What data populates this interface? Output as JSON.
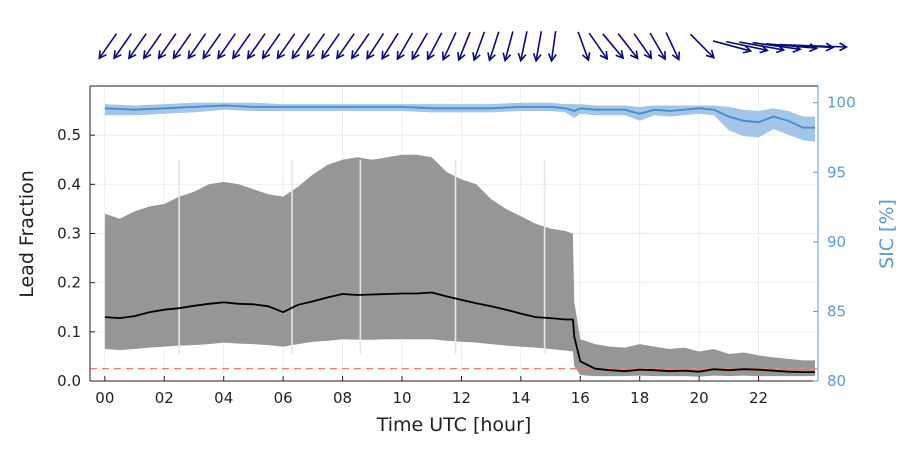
{
  "chart_data": {
    "type": "area",
    "title": "",
    "xlabel": "Time UTC [hour]",
    "ylabel": "Lead Fraction",
    "y2label": "SIC [%]",
    "xlim": [
      -0.5,
      24.0
    ],
    "ylim": [
      0,
      0.6
    ],
    "y2lim": [
      80,
      101.2
    ],
    "grid": true,
    "x_ticks": [
      0,
      2,
      4,
      6,
      8,
      10,
      12,
      14,
      16,
      18,
      20,
      22
    ],
    "x_tick_labels": [
      "00",
      "02",
      "04",
      "06",
      "08",
      "10",
      "12",
      "14",
      "16",
      "18",
      "20",
      "22"
    ],
    "y_ticks": [
      0.0,
      0.1,
      0.2,
      0.3,
      0.4,
      0.5
    ],
    "y_tick_labels": [
      "0.0",
      "0.1",
      "0.2",
      "0.3",
      "0.4",
      "0.5"
    ],
    "y2_ticks": [
      80,
      85,
      90,
      95,
      100
    ],
    "y2_tick_labels": [
      "80",
      "85",
      "90",
      "95",
      "100"
    ],
    "colors": {
      "lead_band": "#969696",
      "lead_mean": "#000000",
      "threshold": "#e8867a",
      "sic_band": "#a3c6e8",
      "sic_line": "#4a8bc7",
      "sic_axis": "#5b9bd5",
      "wind_arrows": "#0a0a80",
      "gaps": "#e6e6e6"
    },
    "threshold_y": 0.025,
    "data_gaps_hours": [
      2.5,
      6.3,
      8.6,
      11.8,
      14.8
    ],
    "lead_fraction": {
      "x": [
        0.0,
        0.5,
        1.0,
        1.5,
        2.0,
        2.5,
        3.0,
        3.5,
        4.0,
        4.5,
        5.0,
        5.5,
        6.0,
        6.5,
        7.0,
        7.5,
        8.0,
        8.5,
        9.0,
        9.5,
        10.0,
        10.5,
        11.0,
        11.5,
        12.0,
        12.5,
        13.0,
        13.5,
        14.0,
        14.5,
        15.0,
        15.5,
        15.75,
        15.8,
        16.0,
        16.5,
        17.0,
        17.5,
        18.0,
        18.5,
        19.0,
        19.5,
        20.0,
        20.5,
        21.0,
        21.5,
        22.0,
        22.5,
        23.0,
        23.5,
        23.9
      ],
      "mean": [
        0.13,
        0.128,
        0.132,
        0.14,
        0.145,
        0.148,
        0.153,
        0.157,
        0.16,
        0.157,
        0.156,
        0.152,
        0.14,
        0.155,
        0.162,
        0.17,
        0.177,
        0.175,
        0.176,
        0.177,
        0.178,
        0.178,
        0.18,
        0.172,
        0.165,
        0.158,
        0.152,
        0.145,
        0.137,
        0.13,
        0.128,
        0.125,
        0.125,
        0.09,
        0.04,
        0.025,
        0.022,
        0.02,
        0.023,
        0.022,
        0.02,
        0.021,
        0.019,
        0.024,
        0.022,
        0.024,
        0.023,
        0.021,
        0.019,
        0.018,
        0.018
      ],
      "upper": [
        0.34,
        0.33,
        0.345,
        0.355,
        0.36,
        0.375,
        0.385,
        0.4,
        0.405,
        0.4,
        0.39,
        0.38,
        0.375,
        0.395,
        0.42,
        0.44,
        0.45,
        0.455,
        0.45,
        0.455,
        0.46,
        0.46,
        0.455,
        0.425,
        0.41,
        0.4,
        0.37,
        0.35,
        0.335,
        0.32,
        0.31,
        0.305,
        0.3,
        0.16,
        0.085,
        0.075,
        0.07,
        0.068,
        0.075,
        0.07,
        0.065,
        0.068,
        0.06,
        0.065,
        0.055,
        0.058,
        0.052,
        0.048,
        0.045,
        0.042,
        0.042
      ],
      "lower": [
        0.065,
        0.063,
        0.065,
        0.068,
        0.07,
        0.072,
        0.073,
        0.075,
        0.078,
        0.076,
        0.075,
        0.073,
        0.07,
        0.075,
        0.08,
        0.082,
        0.085,
        0.084,
        0.084,
        0.085,
        0.085,
        0.085,
        0.085,
        0.082,
        0.08,
        0.078,
        0.075,
        0.072,
        0.07,
        0.068,
        0.065,
        0.062,
        0.06,
        0.03,
        0.012,
        0.01,
        0.01,
        0.01,
        0.011,
        0.01,
        0.01,
        0.01,
        0.009,
        0.011,
        0.01,
        0.011,
        0.01,
        0.01,
        0.01,
        0.01,
        0.01
      ]
    },
    "sic": {
      "x": [
        0.0,
        1.0,
        2.0,
        3.0,
        4.0,
        5.0,
        6.0,
        7.0,
        8.0,
        9.0,
        10.0,
        11.0,
        12.0,
        13.0,
        14.0,
        15.0,
        15.5,
        15.8,
        16.0,
        16.5,
        17.0,
        17.5,
        18.0,
        18.5,
        19.0,
        19.5,
        20.0,
        20.5,
        21.0,
        21.5,
        22.0,
        22.5,
        23.0,
        23.5,
        23.9
      ],
      "mean": [
        99.6,
        99.5,
        99.6,
        99.7,
        99.8,
        99.7,
        99.7,
        99.7,
        99.7,
        99.7,
        99.7,
        99.6,
        99.6,
        99.6,
        99.7,
        99.7,
        99.6,
        99.4,
        99.6,
        99.5,
        99.5,
        99.5,
        99.2,
        99.5,
        99.4,
        99.5,
        99.6,
        99.5,
        99.0,
        98.7,
        98.6,
        99.0,
        98.7,
        98.2,
        98.2
      ],
      "upper": [
        99.9,
        99.8,
        99.9,
        100.0,
        100.0,
        100.0,
        99.9,
        99.9,
        99.9,
        99.9,
        99.9,
        99.9,
        99.9,
        99.9,
        100.0,
        100.0,
        99.9,
        99.9,
        99.9,
        99.8,
        99.8,
        99.8,
        99.7,
        99.8,
        99.8,
        99.8,
        99.8,
        99.8,
        99.7,
        99.5,
        99.4,
        99.6,
        99.4,
        99.0,
        99.0
      ],
      "lower": [
        99.1,
        99.1,
        99.2,
        99.3,
        99.5,
        99.4,
        99.4,
        99.4,
        99.4,
        99.4,
        99.4,
        99.3,
        99.3,
        99.3,
        99.4,
        99.4,
        99.3,
        98.9,
        99.2,
        99.1,
        99.1,
        99.1,
        98.7,
        99.1,
        99.0,
        99.1,
        99.2,
        99.1,
        98.0,
        97.6,
        97.5,
        98.1,
        97.7,
        97.3,
        97.2
      ]
    },
    "wind_arrows": {
      "x": [
        0.0,
        0.5,
        1.0,
        1.5,
        2.0,
        2.5,
        3.0,
        3.5,
        4.0,
        4.5,
        5.0,
        5.5,
        6.0,
        6.5,
        7.0,
        7.5,
        8.0,
        8.5,
        9.0,
        9.5,
        10.0,
        10.5,
        11.0,
        11.5,
        12.0,
        12.5,
        13.0,
        13.5,
        14.0,
        14.5,
        15.0,
        16.0,
        16.5,
        17.0,
        17.5,
        18.0,
        18.5,
        19.0,
        20.0,
        21.0,
        21.5,
        22.0,
        22.5,
        23.0,
        23.5,
        23.9
      ],
      "direction": [
        35,
        35,
        35,
        35,
        35,
        35,
        35,
        35,
        35,
        35,
        35,
        35,
        35,
        35,
        35,
        35,
        35,
        35,
        33,
        32,
        30,
        30,
        28,
        25,
        22,
        20,
        18,
        15,
        12,
        10,
        8,
        -20,
        -35,
        -40,
        -38,
        -35,
        -30,
        -25,
        -45,
        -75,
        -78,
        -80,
        -82,
        -85,
        -87,
        -88
      ],
      "speed": [
        1.0,
        1.0,
        1.0,
        1.0,
        1.0,
        1.0,
        1.0,
        1.0,
        1.0,
        1.0,
        1.0,
        1.0,
        1.0,
        1.0,
        1.0,
        1.0,
        1.0,
        1.0,
        1.0,
        1.0,
        1.0,
        1.0,
        1.0,
        1.0,
        1.0,
        1.0,
        1.0,
        1.0,
        1.0,
        1.0,
        1.0,
        1.0,
        1.05,
        1.05,
        1.05,
        1.0,
        1.0,
        1.0,
        1.1,
        1.3,
        1.4,
        1.5,
        1.6,
        1.7,
        1.8,
        1.9
      ]
    }
  }
}
